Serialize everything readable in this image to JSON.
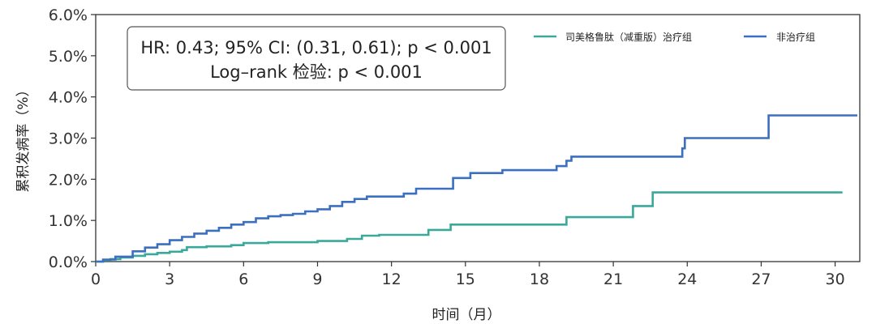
{
  "chart_data": {
    "type": "line",
    "step": true,
    "xlabel": "时间（月）",
    "ylabel": "累积发病率（%）",
    "xlim": [
      0,
      31
    ],
    "ylim": [
      0,
      6
    ],
    "x_ticks": [
      "0",
      "3",
      "6",
      "9",
      "12",
      "15",
      "18",
      "21",
      "24",
      "27",
      "30"
    ],
    "y_ticks": [
      "0.0%",
      "1.0%",
      "2.0%",
      "3.0%",
      "4.0%",
      "5.0%",
      "6.0%"
    ],
    "grid": false,
    "legend_position": "top-right",
    "annotation": {
      "line1": "HR: 0.43; 95% CI: (0.31, 0.61); p < 0.001",
      "line2": "Log–rank 检验: p < 0.001"
    },
    "series": [
      {
        "name": "司美格鲁肽（减重版）治疗组",
        "color": "#3aa89a",
        "points": [
          [
            0,
            0
          ],
          [
            0.3,
            0.03
          ],
          [
            0.6,
            0.06
          ],
          [
            1.0,
            0.1
          ],
          [
            1.5,
            0.14
          ],
          [
            2.0,
            0.18
          ],
          [
            2.5,
            0.21
          ],
          [
            3.0,
            0.24
          ],
          [
            3.5,
            0.28
          ],
          [
            3.7,
            0.35
          ],
          [
            4.5,
            0.37
          ],
          [
            5.5,
            0.4
          ],
          [
            6.0,
            0.45
          ],
          [
            7.0,
            0.47
          ],
          [
            9.0,
            0.5
          ],
          [
            10.2,
            0.55
          ],
          [
            10.8,
            0.63
          ],
          [
            11.5,
            0.65
          ],
          [
            13.5,
            0.77
          ],
          [
            14.4,
            0.9
          ],
          [
            19.1,
            1.08
          ],
          [
            21.8,
            1.35
          ],
          [
            22.6,
            1.68
          ],
          [
            30.3,
            1.68
          ]
        ]
      },
      {
        "name": "非治疗组",
        "color": "#3b6fbf",
        "points": [
          [
            0,
            0
          ],
          [
            0.3,
            0.05
          ],
          [
            0.8,
            0.12
          ],
          [
            1.5,
            0.25
          ],
          [
            2.0,
            0.34
          ],
          [
            2.5,
            0.42
          ],
          [
            3.0,
            0.52
          ],
          [
            3.5,
            0.6
          ],
          [
            4.0,
            0.68
          ],
          [
            4.5,
            0.75
          ],
          [
            5.0,
            0.82
          ],
          [
            5.5,
            0.9
          ],
          [
            6.0,
            0.96
          ],
          [
            6.5,
            1.05
          ],
          [
            7.0,
            1.1
          ],
          [
            7.5,
            1.13
          ],
          [
            8.0,
            1.16
          ],
          [
            8.5,
            1.22
          ],
          [
            9.0,
            1.27
          ],
          [
            9.5,
            1.35
          ],
          [
            10.0,
            1.45
          ],
          [
            10.5,
            1.52
          ],
          [
            11.0,
            1.58
          ],
          [
            12.5,
            1.65
          ],
          [
            13.0,
            1.77
          ],
          [
            14.5,
            2.03
          ],
          [
            15.2,
            2.15
          ],
          [
            16.5,
            2.22
          ],
          [
            18.7,
            2.32
          ],
          [
            19.1,
            2.45
          ],
          [
            19.3,
            2.55
          ],
          [
            23.8,
            2.75
          ],
          [
            23.9,
            3.0
          ],
          [
            27.3,
            3.55
          ],
          [
            30.9,
            3.55
          ]
        ]
      }
    ]
  }
}
